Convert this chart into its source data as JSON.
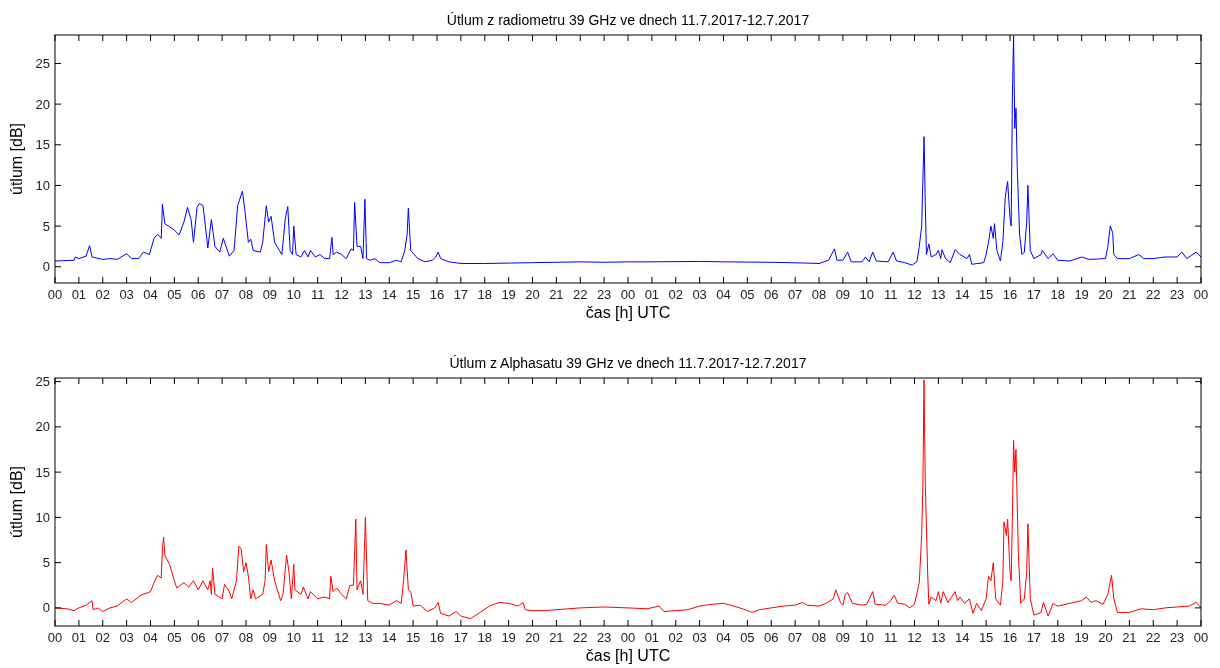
{
  "chart_data": [
    {
      "type": "line",
      "title": "Útlum z radiometru 39 GHz ve dnech 11.7.2017-12.7.2017",
      "xlabel": "čas [h] UTC",
      "ylabel": "útlum [dB]",
      "xlim": [
        0,
        48
      ],
      "ylim": [
        -2,
        28.5
      ],
      "yticks": [
        0,
        5,
        10,
        15,
        20,
        25
      ],
      "xticks": [
        {
          "value": 0,
          "label": "00"
        },
        {
          "value": 1,
          "label": "01"
        },
        {
          "value": 2,
          "label": "02"
        },
        {
          "value": 3,
          "label": "03"
        },
        {
          "value": 4,
          "label": "04"
        },
        {
          "value": 5,
          "label": "05"
        },
        {
          "value": 6,
          "label": "06"
        },
        {
          "value": 7,
          "label": "07"
        },
        {
          "value": 8,
          "label": "08"
        },
        {
          "value": 9,
          "label": "09"
        },
        {
          "value": 10,
          "label": "10"
        },
        {
          "value": 11,
          "label": "11"
        },
        {
          "value": 12,
          "label": "12"
        },
        {
          "value": 13,
          "label": "13"
        },
        {
          "value": 14,
          "label": "14"
        },
        {
          "value": 15,
          "label": "15"
        },
        {
          "value": 16,
          "label": "16"
        },
        {
          "value": 17,
          "label": "17"
        },
        {
          "value": 18,
          "label": "18"
        },
        {
          "value": 19,
          "label": "19"
        },
        {
          "value": 20,
          "label": "20"
        },
        {
          "value": 21,
          "label": "21"
        },
        {
          "value": 22,
          "label": "22"
        },
        {
          "value": 23,
          "label": "23"
        },
        {
          "value": 24,
          "label": "00"
        },
        {
          "value": 25,
          "label": "01"
        },
        {
          "value": 26,
          "label": "02"
        },
        {
          "value": 27,
          "label": "03"
        },
        {
          "value": 28,
          "label": "04"
        },
        {
          "value": 29,
          "label": "05"
        },
        {
          "value": 30,
          "label": "06"
        },
        {
          "value": 31,
          "label": "07"
        },
        {
          "value": 32,
          "label": "08"
        },
        {
          "value": 33,
          "label": "09"
        },
        {
          "value": 34,
          "label": "10"
        },
        {
          "value": 35,
          "label": "11"
        },
        {
          "value": 36,
          "label": "12"
        },
        {
          "value": 37,
          "label": "13"
        },
        {
          "value": 38,
          "label": "14"
        },
        {
          "value": 39,
          "label": "15"
        },
        {
          "value": 40,
          "label": "16"
        },
        {
          "value": 41,
          "label": "17"
        },
        {
          "value": 42,
          "label": "18"
        },
        {
          "value": 43,
          "label": "19"
        },
        {
          "value": 44,
          "label": "20"
        },
        {
          "value": 45,
          "label": "21"
        },
        {
          "value": 46,
          "label": "22"
        },
        {
          "value": 47,
          "label": "23"
        },
        {
          "value": 48,
          "label": "00"
        }
      ],
      "series": [
        {
          "color": "#0000ff",
          "x": [
            0,
            0.8,
            0.85,
            1.0,
            1.3,
            1.45,
            1.55,
            2.0,
            2.3,
            2.6,
            3.0,
            3.2,
            3.5,
            3.7,
            3.95,
            4.15,
            4.3,
            4.45,
            4.5,
            4.6,
            5.0,
            5.2,
            5.4,
            5.55,
            5.7,
            5.8,
            5.95,
            6.05,
            6.2,
            6.3,
            6.4,
            6.55,
            6.7,
            6.9,
            7.05,
            7.3,
            7.5,
            7.65,
            7.85,
            7.95,
            8.1,
            8.2,
            8.3,
            8.6,
            8.7,
            8.85,
            8.95,
            9.05,
            9.2,
            9.4,
            9.5,
            9.65,
            9.75,
            9.85,
            9.95,
            10.0,
            10.1,
            10.3,
            10.45,
            10.6,
            10.7,
            10.9,
            11.1,
            11.3,
            11.5,
            11.6,
            11.65,
            11.8,
            12.0,
            12.2,
            12.4,
            12.5,
            12.55,
            12.65,
            12.8,
            12.9,
            12.98,
            13.05,
            13.2,
            13.4,
            13.6,
            14.0,
            14.3,
            14.5,
            14.65,
            14.75,
            14.8,
            14.9,
            15.2,
            15.5,
            15.8,
            15.95,
            16.05,
            16.15,
            16.5,
            17.0,
            18.0,
            19,
            20,
            21,
            22,
            23,
            24,
            25,
            27,
            28,
            30,
            31.5,
            32.0,
            32.4,
            32.65,
            32.75,
            33.0,
            33.2,
            33.35,
            33.8,
            33.95,
            34.1,
            34.25,
            34.4,
            34.9,
            35.1,
            35.25,
            35.6,
            35.9,
            36.1,
            36.2,
            36.3,
            36.4,
            36.45,
            36.5,
            36.6,
            36.7,
            36.9,
            37.0,
            37.1,
            37.15,
            37.3,
            37.5,
            37.7,
            37.9,
            38.2,
            38.3,
            38.4,
            38.9,
            39.0,
            39.1,
            39.2,
            39.3,
            39.35,
            39.45,
            39.6,
            39.7,
            39.8,
            39.9,
            40.0,
            40.05,
            40.1,
            40.15,
            40.2,
            40.25,
            40.3,
            40.4,
            40.5,
            40.6,
            40.7,
            40.75,
            40.85,
            41.0,
            41.3,
            41.35,
            41.6,
            41.8,
            42.0,
            42.5,
            43.0,
            43.3,
            44.0,
            44.1,
            44.2,
            44.3,
            44.35,
            44.5,
            45.0,
            45.4,
            45.6,
            46.0,
            46.5,
            47.0,
            47.2,
            47.4,
            47.6,
            47.8,
            48.0
          ],
          "values": [
            0.7,
            0.8,
            1.2,
            1.0,
            1.3,
            2.6,
            1.2,
            0.9,
            1.0,
            0.9,
            1.6,
            1.0,
            1.0,
            1.8,
            1.5,
            3.5,
            4.0,
            3.5,
            7.7,
            5.3,
            4.5,
            3.9,
            5.5,
            7.3,
            5.8,
            3.0,
            7.3,
            7.8,
            7.5,
            5.0,
            2.3,
            5.8,
            2.5,
            1.8,
            3.5,
            1.3,
            2.0,
            7.5,
            9.3,
            7.0,
            3.0,
            3.4,
            2.0,
            1.8,
            3.0,
            7.5,
            5.5,
            6.2,
            3.0,
            2.0,
            1.5,
            6.0,
            7.4,
            2.0,
            1.5,
            5.0,
            1.5,
            1.2,
            2.0,
            1.2,
            2.0,
            1.2,
            1.5,
            1.0,
            1.0,
            3.6,
            1.5,
            1.8,
            1.5,
            1.0,
            2.2,
            2.0,
            7.9,
            2.5,
            2.5,
            1.0,
            8.3,
            1.0,
            0.8,
            1.0,
            0.5,
            0.5,
            0.8,
            0.6,
            2.0,
            4.0,
            7.2,
            2.0,
            1.0,
            0.6,
            0.8,
            1.2,
            1.8,
            1.0,
            0.6,
            0.4,
            0.4,
            0.45,
            0.5,
            0.55,
            0.6,
            0.55,
            0.6,
            0.6,
            0.65,
            0.6,
            0.55,
            0.45,
            0.4,
            0.8,
            2.2,
            0.8,
            0.8,
            1.8,
            0.6,
            0.6,
            1.2,
            0.6,
            1.8,
            0.7,
            0.6,
            1.8,
            0.7,
            0.5,
            0.2,
            0.6,
            2.5,
            5.0,
            16.0,
            8.0,
            1.5,
            2.8,
            1.2,
            1.5,
            2.0,
            1.0,
            2.1,
            1.0,
            0.5,
            2.1,
            1.5,
            1.0,
            1.5,
            0.3,
            0.5,
            1.5,
            3.0,
            5.0,
            3.5,
            5.3,
            2.0,
            0.7,
            3.0,
            8.5,
            10.5,
            6.0,
            5.0,
            21.0,
            28.4,
            17.0,
            19.5,
            12.5,
            4.0,
            1.5,
            1.8,
            5.5,
            10.0,
            2.0,
            1.0,
            1.5,
            2.0,
            1.0,
            1.6,
            0.8,
            0.7,
            1.2,
            0.9,
            1.0,
            2.5,
            5.0,
            4.2,
            1.5,
            1.0,
            1.0,
            1.5,
            1.0,
            1.0,
            1.2,
            1.2,
            1.8,
            1.0,
            1.4,
            1.8,
            1.2
          ]
        }
      ]
    },
    {
      "type": "line",
      "title": "Útlum z Alphasatu 39 GHz ve dnech 11.7.2017-12.7.2017",
      "xlabel": "čas [h] UTC",
      "ylabel": "útlum [dB]",
      "xlim": [
        0,
        48
      ],
      "ylim": [
        -2,
        25.4
      ],
      "yticks": [
        0,
        5,
        10,
        15,
        20,
        25
      ],
      "xticks": [
        {
          "value": 0,
          "label": "00"
        },
        {
          "value": 1,
          "label": "01"
        },
        {
          "value": 2,
          "label": "02"
        },
        {
          "value": 3,
          "label": "03"
        },
        {
          "value": 4,
          "label": "04"
        },
        {
          "value": 5,
          "label": "05"
        },
        {
          "value": 6,
          "label": "06"
        },
        {
          "value": 7,
          "label": "07"
        },
        {
          "value": 8,
          "label": "08"
        },
        {
          "value": 9,
          "label": "09"
        },
        {
          "value": 10,
          "label": "10"
        },
        {
          "value": 11,
          "label": "11"
        },
        {
          "value": 12,
          "label": "12"
        },
        {
          "value": 13,
          "label": "13"
        },
        {
          "value": 14,
          "label": "14"
        },
        {
          "value": 15,
          "label": "15"
        },
        {
          "value": 16,
          "label": "16"
        },
        {
          "value": 17,
          "label": "17"
        },
        {
          "value": 18,
          "label": "18"
        },
        {
          "value": 19,
          "label": "19"
        },
        {
          "value": 20,
          "label": "20"
        },
        {
          "value": 21,
          "label": "21"
        },
        {
          "value": 22,
          "label": "22"
        },
        {
          "value": 23,
          "label": "23"
        },
        {
          "value": 24,
          "label": "00"
        },
        {
          "value": 25,
          "label": "01"
        },
        {
          "value": 26,
          "label": "02"
        },
        {
          "value": 27,
          "label": "03"
        },
        {
          "value": 28,
          "label": "04"
        },
        {
          "value": 29,
          "label": "05"
        },
        {
          "value": 30,
          "label": "06"
        },
        {
          "value": 31,
          "label": "07"
        },
        {
          "value": 32,
          "label": "08"
        },
        {
          "value": 33,
          "label": "09"
        },
        {
          "value": 34,
          "label": "10"
        },
        {
          "value": 35,
          "label": "11"
        },
        {
          "value": 36,
          "label": "12"
        },
        {
          "value": 37,
          "label": "13"
        },
        {
          "value": 38,
          "label": "14"
        },
        {
          "value": 39,
          "label": "15"
        },
        {
          "value": 40,
          "label": "16"
        },
        {
          "value": 41,
          "label": "17"
        },
        {
          "value": 42,
          "label": "18"
        },
        {
          "value": 43,
          "label": "19"
        },
        {
          "value": 44,
          "label": "20"
        },
        {
          "value": 45,
          "label": "21"
        },
        {
          "value": 46,
          "label": "22"
        },
        {
          "value": 47,
          "label": "23"
        },
        {
          "value": 48,
          "label": "00"
        }
      ],
      "series": [
        {
          "color": "#ff0000",
          "x": [
            0,
            0.5,
            0.8,
            1.0,
            1.3,
            1.55,
            1.6,
            1.8,
            2.0,
            2.3,
            2.6,
            3.0,
            3.2,
            3.6,
            4.0,
            4.15,
            4.3,
            4.45,
            4.5,
            4.55,
            4.6,
            4.8,
            5.0,
            5.1,
            5.4,
            5.6,
            5.8,
            6.0,
            6.2,
            6.4,
            6.5,
            6.55,
            6.6,
            6.7,
            7.0,
            7.1,
            7.3,
            7.4,
            7.6,
            7.7,
            7.8,
            7.9,
            8.0,
            8.1,
            8.2,
            8.3,
            8.4,
            8.7,
            8.8,
            8.85,
            8.95,
            9.05,
            9.2,
            9.45,
            9.55,
            9.7,
            9.8,
            9.9,
            10.0,
            10.05,
            10.3,
            10.4,
            10.6,
            10.7,
            11.0,
            11.3,
            11.5,
            11.55,
            11.65,
            11.8,
            12.0,
            12.2,
            12.35,
            12.5,
            12.6,
            12.65,
            12.8,
            12.9,
            13.0,
            13.1,
            13.3,
            13.6,
            14.0,
            14.3,
            14.5,
            14.6,
            14.7,
            14.8,
            14.9,
            15.0,
            15.3,
            15.6,
            15.9,
            16.05,
            16.15,
            16.5,
            16.8,
            17.0,
            17.4,
            17.8,
            18.2,
            18.6,
            19.0,
            19.4,
            19.6,
            19.7,
            20.0,
            20.5,
            21.0,
            22,
            23,
            24,
            24.8,
            25.3,
            25.5,
            26.0,
            26.5,
            27.0,
            27.5,
            28.0,
            28.3,
            28.8,
            29.2,
            29.5,
            30.0,
            30.5,
            31.0,
            31.3,
            31.5,
            32.0,
            32.3,
            32.6,
            32.7,
            32.9,
            33.0,
            33.1,
            33.2,
            33.4,
            33.8,
            34.0,
            34.25,
            34.35,
            34.8,
            35.0,
            35.15,
            35.3,
            35.6,
            35.8,
            36.0,
            36.2,
            36.3,
            36.35,
            36.4,
            36.45,
            36.55,
            36.6,
            36.7,
            36.9,
            37.0,
            37.1,
            37.2,
            37.4,
            37.7,
            37.8,
            37.9,
            38.1,
            38.3,
            38.45,
            38.6,
            38.8,
            39.0,
            39.1,
            39.2,
            39.3,
            39.4,
            39.6,
            39.7,
            39.75,
            39.85,
            39.9,
            40.0,
            40.05,
            40.1,
            40.15,
            40.2,
            40.25,
            40.35,
            40.45,
            40.6,
            40.7,
            40.75,
            40.85,
            41.0,
            41.3,
            41.4,
            41.6,
            41.8,
            42.0,
            42.5,
            43.0,
            43.2,
            43.4,
            43.6,
            43.9,
            44.1,
            44.25,
            44.35,
            44.5,
            45.0,
            45.5,
            46.0,
            46.5,
            47.0,
            47.5,
            47.8,
            48.0
          ],
          "values": [
            0,
            -0.1,
            -0.3,
            0.0,
            0.3,
            0.8,
            -0.2,
            0.0,
            -0.4,
            0.0,
            0.2,
            1.0,
            0.6,
            1.4,
            1.8,
            2.8,
            3.6,
            3.3,
            6.5,
            7.8,
            5.8,
            4.8,
            3.0,
            2.2,
            2.8,
            2.3,
            3.0,
            2.0,
            3.0,
            2.0,
            3.0,
            1.5,
            4.4,
            1.5,
            1.0,
            2.6,
            1.8,
            1.0,
            3.0,
            6.8,
            6.5,
            4.0,
            5.0,
            3.5,
            1.0,
            2.0,
            1.0,
            1.5,
            3.0,
            7.0,
            4.0,
            5.3,
            3.0,
            0.8,
            1.5,
            5.8,
            4.0,
            1.0,
            4.8,
            2.0,
            1.5,
            2.3,
            1.0,
            1.8,
            1.0,
            1.2,
            1.0,
            3.5,
            1.8,
            2.2,
            1.5,
            1.0,
            2.5,
            2.5,
            9.8,
            2.0,
            3.0,
            1.5,
            10.0,
            0.8,
            0.5,
            0.5,
            0.3,
            0.8,
            0.5,
            3.0,
            6.4,
            2.0,
            1.8,
            0.2,
            0.3,
            -0.4,
            0.0,
            0.6,
            -0.6,
            -0.9,
            -0.4,
            -0.9,
            -1.2,
            -0.5,
            0.2,
            0.6,
            0.5,
            0.2,
            0.6,
            -0.2,
            -0.3,
            -0.3,
            -0.2,
            0.0,
            0.1,
            0.0,
            -0.1,
            0.2,
            -0.4,
            -0.3,
            -0.2,
            0.2,
            0.4,
            0.5,
            0.3,
            -0.1,
            -0.5,
            -0.2,
            0.0,
            0.2,
            0.3,
            0.6,
            0.3,
            0.2,
            0.5,
            1.0,
            2.0,
            0.6,
            0.3,
            1.5,
            1.7,
            0.5,
            0.3,
            0.4,
            1.8,
            0.4,
            0.3,
            0.8,
            1.4,
            0.5,
            0.4,
            0.0,
            0.4,
            2.8,
            8.0,
            13.5,
            25.2,
            14.0,
            4.0,
            0.4,
            1.2,
            0.8,
            1.8,
            0.5,
            1.8,
            0.6,
            1.8,
            0.8,
            1.2,
            0.5,
            1.0,
            -0.6,
            0.5,
            -0.3,
            1.0,
            3.5,
            3.0,
            5.0,
            1.0,
            0.3,
            3.0,
            9.5,
            8.0,
            9.8,
            4.0,
            3.0,
            10.0,
            18.5,
            15.0,
            17.5,
            6.0,
            0.5,
            1.0,
            4.0,
            9.3,
            1.0,
            -0.8,
            -0.5,
            0.6,
            -0.9,
            0.5,
            0.2,
            0.5,
            0.8,
            1.2,
            0.6,
            0.8,
            0.4,
            1.5,
            3.6,
            1.0,
            -0.5,
            -0.5,
            -0.1,
            -0.2,
            0.0,
            0.1,
            0.2,
            0.6,
            0.0
          ]
        }
      ]
    }
  ]
}
